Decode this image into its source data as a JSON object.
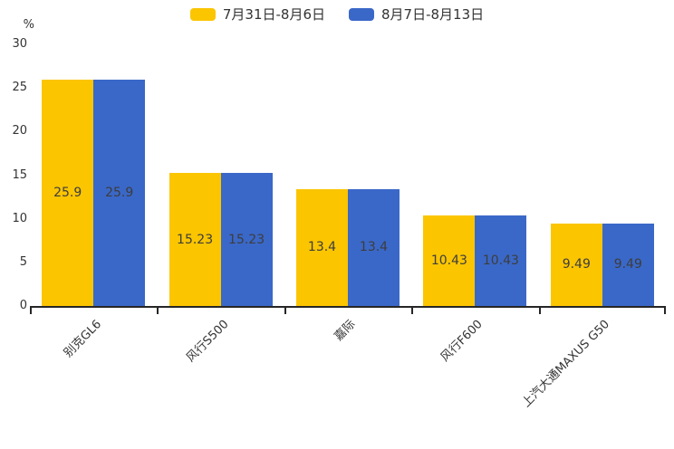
{
  "chart_data": {
    "type": "bar",
    "title": "",
    "ylabel": "%",
    "xlabel": "",
    "categories": [
      "别克GL6",
      "风行S500",
      "嘉际",
      "风行F600",
      "上汽大通MAXUS G50"
    ],
    "series": [
      {
        "name": "7月31日-8月6日",
        "color": "#FBC500",
        "values": [
          25.9,
          15.23,
          13.4,
          10.43,
          9.49
        ]
      },
      {
        "name": "8月7日-8月13日",
        "color": "#3A68C8",
        "values": [
          25.9,
          15.23,
          13.4,
          10.43,
          9.49
        ]
      }
    ],
    "ylim": [
      0,
      30
    ],
    "yticks": [
      0,
      5,
      10,
      15,
      20,
      25,
      30
    ],
    "grid": false,
    "legend_position": "top-center",
    "value_label_position": "inside-center",
    "category_label_rotation_deg": 45,
    "colors": {
      "axis": "#262626",
      "tick_text": "#333333",
      "value_label_text": "#3d3d3d"
    }
  }
}
